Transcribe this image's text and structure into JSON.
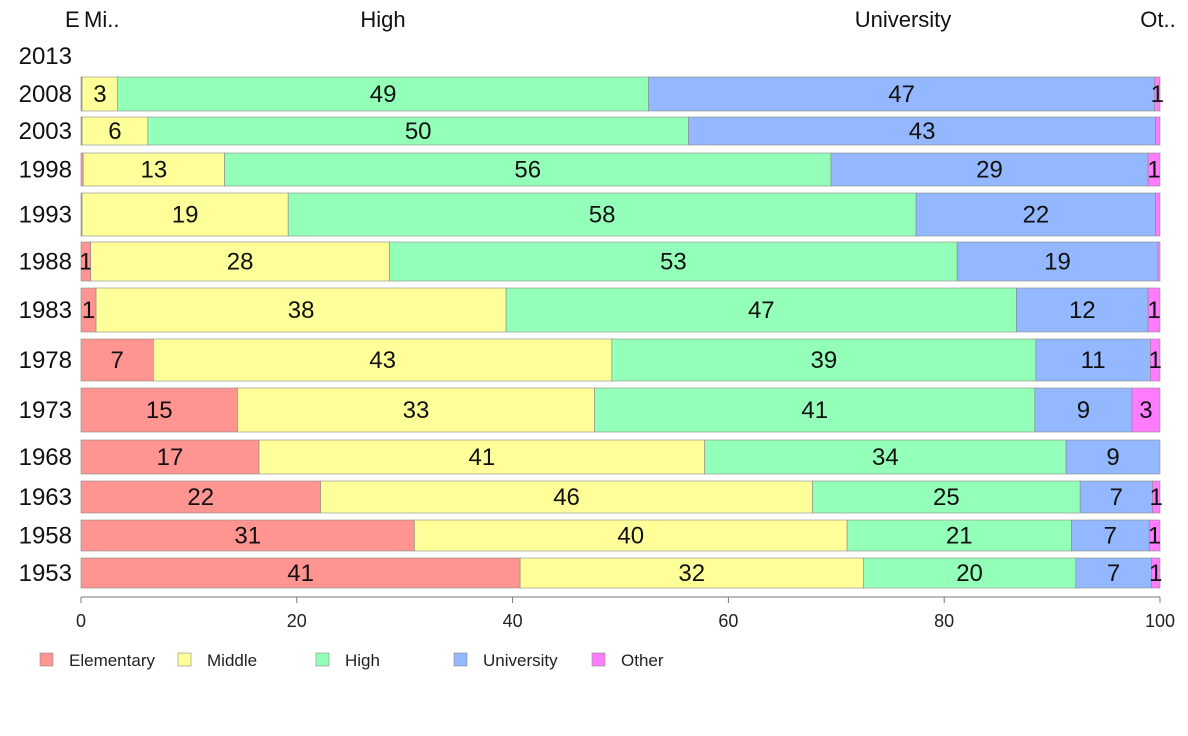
{
  "chart_data": {
    "type": "bar",
    "orientation": "horizontal",
    "stacked": true,
    "categories": [
      "2013",
      "2008",
      "2003",
      "1998",
      "1993",
      "1988",
      "1983",
      "1978",
      "1973",
      "1968",
      "1963",
      "1958",
      "1953"
    ],
    "series": [
      {
        "name": "Elementary",
        "color": "#FF9490",
        "values": [
          null,
          0.1,
          0.1,
          0.2,
          0.1,
          0.9,
          1.4,
          6.7,
          14.5,
          16.5,
          22.2,
          30.9,
          40.7
        ]
      },
      {
        "name": "Middle",
        "color": "#FFFF99",
        "values": [
          null,
          3.3,
          6.1,
          13.1,
          19.1,
          27.7,
          38.0,
          42.5,
          33.1,
          41.3,
          45.6,
          40.1,
          31.8
        ]
      },
      {
        "name": "High",
        "color": "#94FFB8",
        "values": [
          null,
          49.2,
          50.1,
          56.2,
          58.2,
          52.6,
          47.3,
          39.3,
          40.8,
          33.5,
          24.8,
          20.8,
          19.7
        ]
      },
      {
        "name": "University",
        "color": "#94B8FF",
        "values": [
          null,
          46.9,
          43.3,
          29.4,
          22.2,
          18.6,
          12.2,
          10.6,
          9.0,
          8.7,
          6.7,
          7.2,
          7.0
        ]
      },
      {
        "name": "Other",
        "color": "#FF7BFF",
        "values": [
          null,
          0.5,
          0.4,
          1.1,
          0.4,
          0.2,
          1.1,
          0.9,
          2.6,
          0.0,
          0.7,
          1.0,
          0.8
        ]
      }
    ],
    "xlim": [
      0,
      100
    ],
    "xticks": [
      "0",
      "20",
      "40",
      "60",
      "80",
      "100"
    ],
    "top_labels": [
      "E",
      "Mi..",
      "High",
      "University",
      "Ot.."
    ],
    "legend_position": "bottom",
    "grid": false
  }
}
